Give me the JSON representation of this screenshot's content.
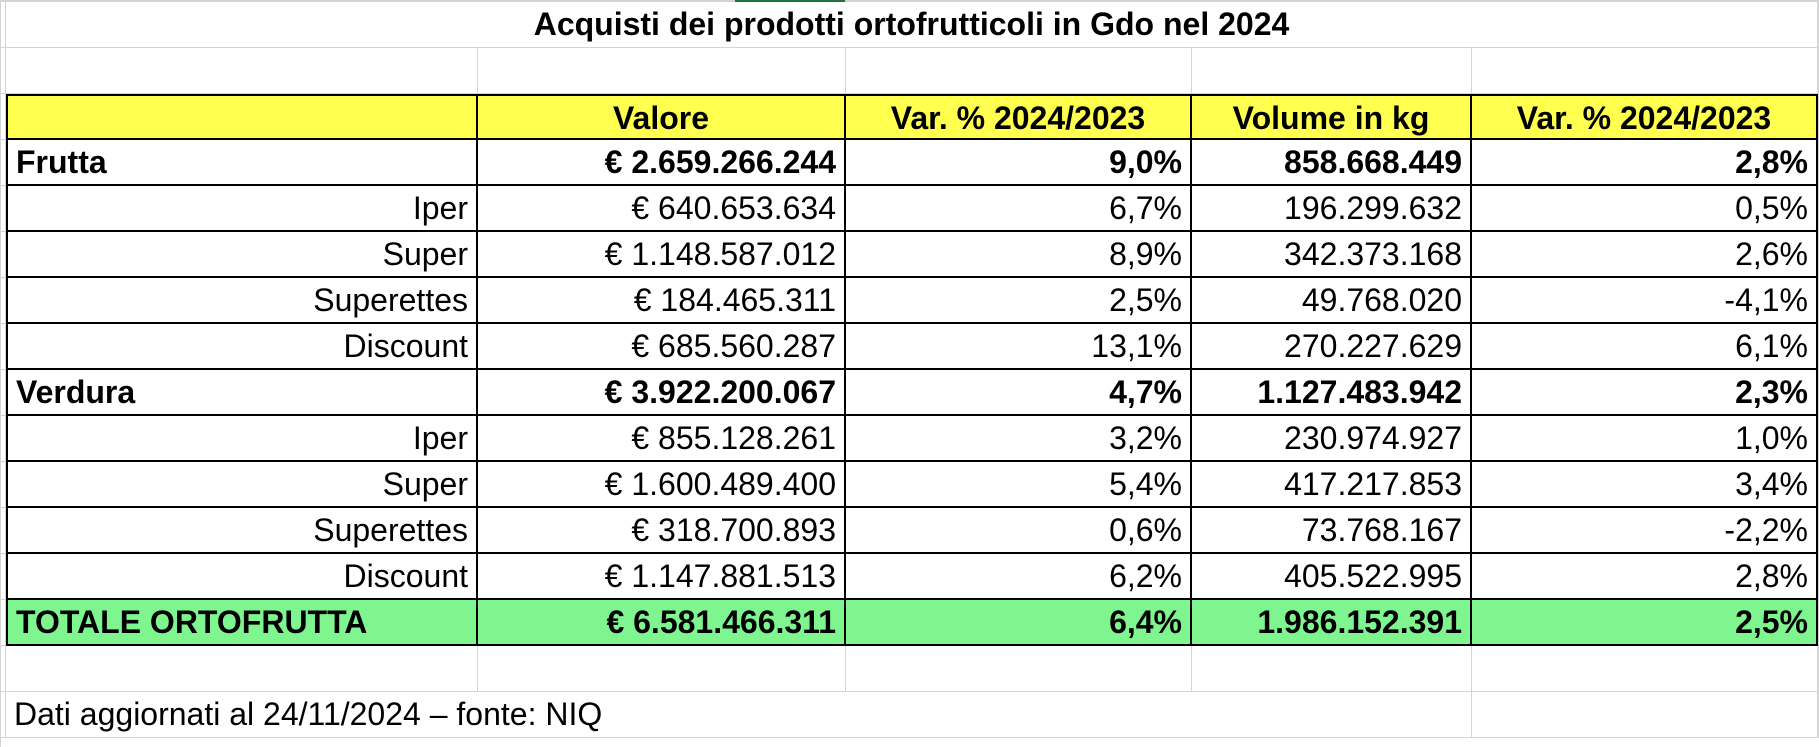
{
  "title": "Acquisti dei prodotti ortofrutticoli in Gdo nel 2024",
  "headers": [
    "",
    "Valore",
    "Var. % 2024/2023",
    "Volume in kg",
    "Var. % 2024/2023"
  ],
  "rows": [
    {
      "label": "Frutta",
      "valore": "€ 2.659.266.244",
      "var_valore": "9,0%",
      "volume": "858.668.449",
      "var_volume": "2,8%"
    },
    {
      "label": "Iper",
      "valore": "€ 640.653.634",
      "var_valore": "6,7%",
      "volume": "196.299.632",
      "var_volume": "0,5%"
    },
    {
      "label": "Super",
      "valore": "€ 1.148.587.012",
      "var_valore": "8,9%",
      "volume": "342.373.168",
      "var_volume": "2,6%"
    },
    {
      "label": "Superettes",
      "valore": "€ 184.465.311",
      "var_valore": "2,5%",
      "volume": "49.768.020",
      "var_volume": "-4,1%"
    },
    {
      "label": "Discount",
      "valore": "€ 685.560.287",
      "var_valore": "13,1%",
      "volume": "270.227.629",
      "var_volume": "6,1%"
    },
    {
      "label": "Verdura",
      "valore": "€ 3.922.200.067",
      "var_valore": "4,7%",
      "volume": "1.127.483.942",
      "var_volume": "2,3%"
    },
    {
      "label": "Iper",
      "valore": "€ 855.128.261",
      "var_valore": "3,2%",
      "volume": "230.974.927",
      "var_volume": "1,0%"
    },
    {
      "label": "Super",
      "valore": "€ 1.600.489.400",
      "var_valore": "5,4%",
      "volume": "417.217.853",
      "var_volume": "3,4%"
    },
    {
      "label": "Superettes",
      "valore": "€ 318.700.893",
      "var_valore": "0,6%",
      "volume": "73.768.167",
      "var_volume": "-2,2%"
    },
    {
      "label": "Discount",
      "valore": "€ 1.147.881.513",
      "var_valore": "6,2%",
      "volume": "405.522.995",
      "var_volume": "2,8%"
    },
    {
      "label": "TOTALE ORTOFRUTTA",
      "valore": "€ 6.581.466.311",
      "var_valore": "6,4%",
      "volume": "1.986.152.391",
      "var_volume": "2,5%"
    }
  ],
  "note": "Dati aggiornati al 24/11/2024 – fonte: NIQ",
  "colors": {
    "header_fill": "#ffff4f",
    "total_fill": "#7ef58f",
    "grid": "#d4d4d4",
    "selection": "#217346"
  }
}
